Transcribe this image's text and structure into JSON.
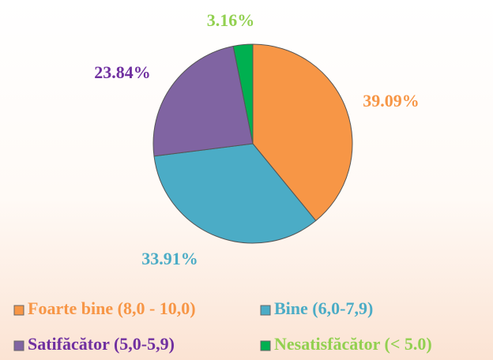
{
  "chart_data": {
    "type": "pie",
    "categories": [
      "Foarte bine (8,0 - 10,0)",
      "Bine (6,0-7,9)",
      "Satifăcător (5,0-5,9)",
      "Nesatisfăcător (< 5.0)"
    ],
    "values": [
      39.09,
      33.91,
      23.84,
      3.16
    ],
    "value_labels": [
      "39.09%",
      "33.91%",
      "23.84%",
      "3.16%"
    ],
    "colors": [
      "#f79646",
      "#4bacc6",
      "#8064a2",
      "#00b050"
    ],
    "label_colors": [
      "#f79646",
      "#4bacc6",
      "#7030a0",
      "#92d050"
    ]
  }
}
